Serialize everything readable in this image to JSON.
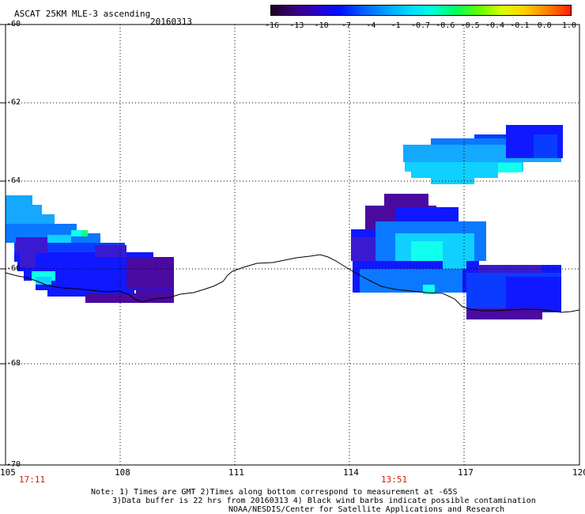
{
  "header": {
    "title": "ASCAT 25KM MLE-3 ascending",
    "date": "20160313"
  },
  "colorbar": {
    "colors": [
      "#1a0020",
      "#3a007a",
      "#2a00c8",
      "#0010ff",
      "#0060ff",
      "#00a0ff",
      "#00d8ff",
      "#00ffd8",
      "#00ff60",
      "#60ff00",
      "#d8ff00",
      "#ffd000",
      "#ff8000",
      "#ff2000"
    ],
    "labels": [
      "-16",
      "-13",
      "-10",
      "-7",
      "-4",
      "-1",
      "-0.7",
      "-0.6",
      "-0.5",
      "-0.4",
      "-0.1",
      "0.0",
      "1.0"
    ]
  },
  "axes": {
    "y_labels": [
      "-60",
      "-62",
      "-64",
      "-66",
      "-68",
      "-70"
    ],
    "x_labels": [
      "105",
      "108",
      "111",
      "114",
      "117",
      "120"
    ]
  },
  "times": {
    "left": "17:11",
    "right": "13:51"
  },
  "notes": {
    "line1": "Note: 1) Times are GMT 2)Times along bottom correspond to measurement at -65S",
    "line2": "3)Data buffer is 22 hrs from 20160313 4) Black wind barbs indicate possible contamination",
    "line3": "NOAA/NESDIS/Center for Satellite Applications and Research"
  }
}
